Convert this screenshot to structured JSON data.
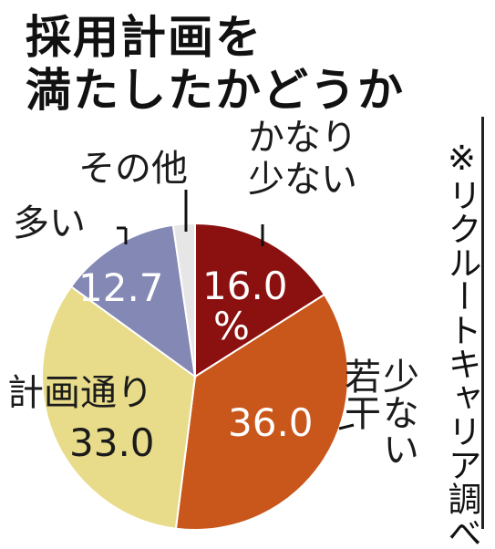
{
  "title_lines": [
    "採用計画を",
    "満たしたかどうか"
  ],
  "source": "※リクルートキャリア調べ",
  "chart_data": {
    "type": "pie",
    "title": "採用計画を満たしたかどうか",
    "unit": "%",
    "slices": [
      {
        "name": "かなり少ない",
        "value": 16.0,
        "color": "#8b1010",
        "value_label": "16.0"
      },
      {
        "name": "若干少ない",
        "value": 36.0,
        "color": "#c9561a",
        "value_label": "36.0"
      },
      {
        "name": "計画通り",
        "value": 33.0,
        "color": "#e8dc8a",
        "value_label": "33.0"
      },
      {
        "name": "多い",
        "value": 12.7,
        "color": "#8388b4",
        "value_label": "12.7"
      },
      {
        "name": "その他",
        "value": 2.3,
        "color": "#e6e6e6",
        "value_label": ""
      }
    ],
    "annotations": {
      "kanari": [
        "かなり",
        "少ない"
      ],
      "jakkan": [
        "若干",
        "少ない"
      ],
      "keikaku": "計画通り",
      "ooi": "多い",
      "sonota": "その他",
      "percent": "%"
    }
  }
}
